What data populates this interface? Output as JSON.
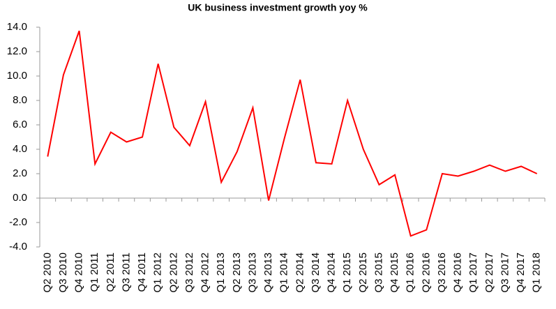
{
  "chart_data": {
    "type": "line",
    "title": "UK business investment growth yoy %",
    "categories": [
      "Q2 2010",
      "Q3 2010",
      "Q4 2010",
      "Q1 2011",
      "Q2 2011",
      "Q3 2011",
      "Q4 2011",
      "Q1 2012",
      "Q2 2012",
      "Q3 2012",
      "Q4 2012",
      "Q1 2013",
      "Q2 2013",
      "Q3 2013",
      "Q4 2013",
      "Q1 2014",
      "Q2 2014",
      "Q3 2014",
      "Q4 2014",
      "Q1 2015",
      "Q2 2015",
      "Q3 2015",
      "Q4 2015",
      "Q1 2016",
      "Q2 2016",
      "Q3 2016",
      "Q4 2016",
      "Q1 2017",
      "Q2 2017",
      "Q3 2017",
      "Q4 2017",
      "Q1 2018"
    ],
    "values": [
      3.4,
      10.1,
      13.7,
      2.8,
      5.4,
      4.6,
      5.0,
      11.0,
      5.8,
      4.3,
      7.9,
      1.3,
      3.8,
      7.4,
      -0.2,
      4.9,
      9.7,
      2.9,
      2.8,
      8.0,
      4.0,
      1.1,
      1.9,
      -3.1,
      -2.6,
      2.0,
      1.8,
      2.2,
      2.7,
      2.2,
      2.6,
      2.0
    ],
    "color": "#ff0000",
    "ylim": [
      -4,
      14
    ],
    "yticks": [
      {
        "value": -4,
        "label": "-4.0"
      },
      {
        "value": -2,
        "label": "-2.0"
      },
      {
        "value": 0,
        "label": "0.0"
      },
      {
        "value": 2,
        "label": "2.0"
      },
      {
        "value": 4,
        "label": "4.0"
      },
      {
        "value": 6,
        "label": "6.0"
      },
      {
        "value": 8,
        "label": "8.0"
      },
      {
        "value": 10,
        "label": "10.0"
      },
      {
        "value": 12,
        "label": "12.0"
      },
      {
        "value": 14,
        "label": "14.0"
      }
    ]
  }
}
